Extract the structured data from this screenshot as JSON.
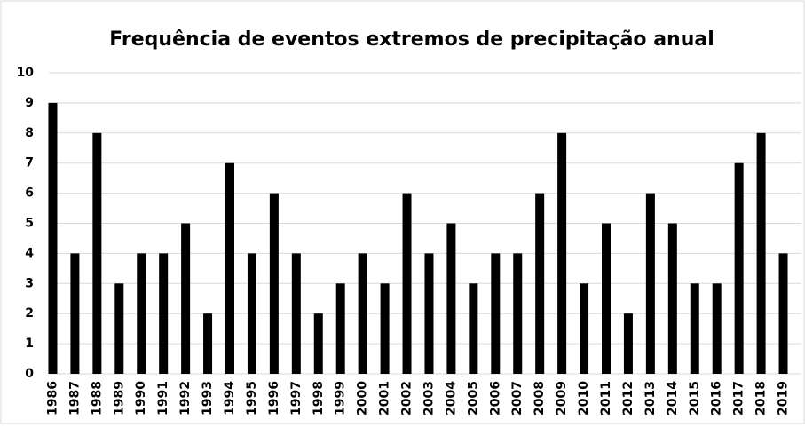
{
  "chart_data": {
    "type": "bar",
    "title": "Frequência de eventos extremos de precipitação anual",
    "categories": [
      "1986",
      "1987",
      "1988",
      "1989",
      "1990",
      "1991",
      "1992",
      "1993",
      "1994",
      "1995",
      "1996",
      "1997",
      "1998",
      "1999",
      "2000",
      "2001",
      "2002",
      "2003",
      "2004",
      "2005",
      "2006",
      "2007",
      "2008",
      "2009",
      "2010",
      "2011",
      "2012",
      "2013",
      "2014",
      "2015",
      "2016",
      "2017",
      "2018",
      "2019"
    ],
    "values": [
      9,
      4,
      8,
      3,
      4,
      4,
      5,
      2,
      7,
      4,
      6,
      4,
      2,
      3,
      4,
      3,
      6,
      4,
      5,
      3,
      4,
      4,
      6,
      8,
      3,
      5,
      2,
      6,
      5,
      3,
      3,
      7,
      8,
      4
    ],
    "color": "#000000",
    "ylim": [
      0,
      10
    ],
    "yticks": [
      0,
      1,
      2,
      3,
      4,
      5,
      6,
      7,
      8,
      9,
      10
    ],
    "grid": true
  }
}
